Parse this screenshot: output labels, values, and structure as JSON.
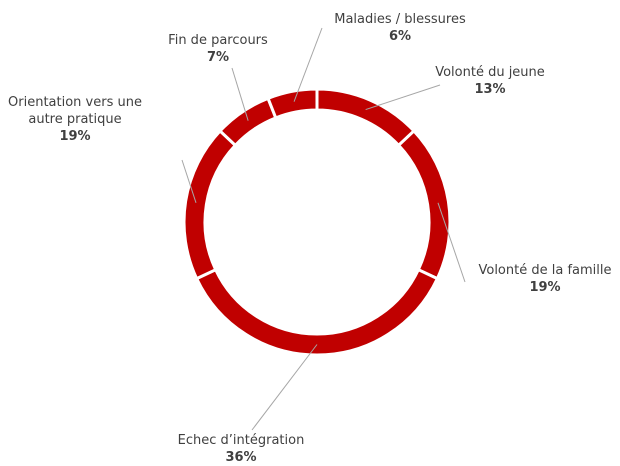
{
  "chart_data": {
    "type": "donut",
    "categories": [
      "Volonté du jeune",
      "Volonté de la famille",
      "Echec d’intégration",
      "Orientation vers une autre pratique",
      "Fin de parcours",
      "Maladies / blessures"
    ],
    "values": [
      13,
      19,
      36,
      19,
      7,
      6
    ],
    "value_labels": [
      "13%",
      "19%",
      "36%",
      "19%",
      "7%",
      "6%"
    ],
    "color": "#c00000"
  }
}
